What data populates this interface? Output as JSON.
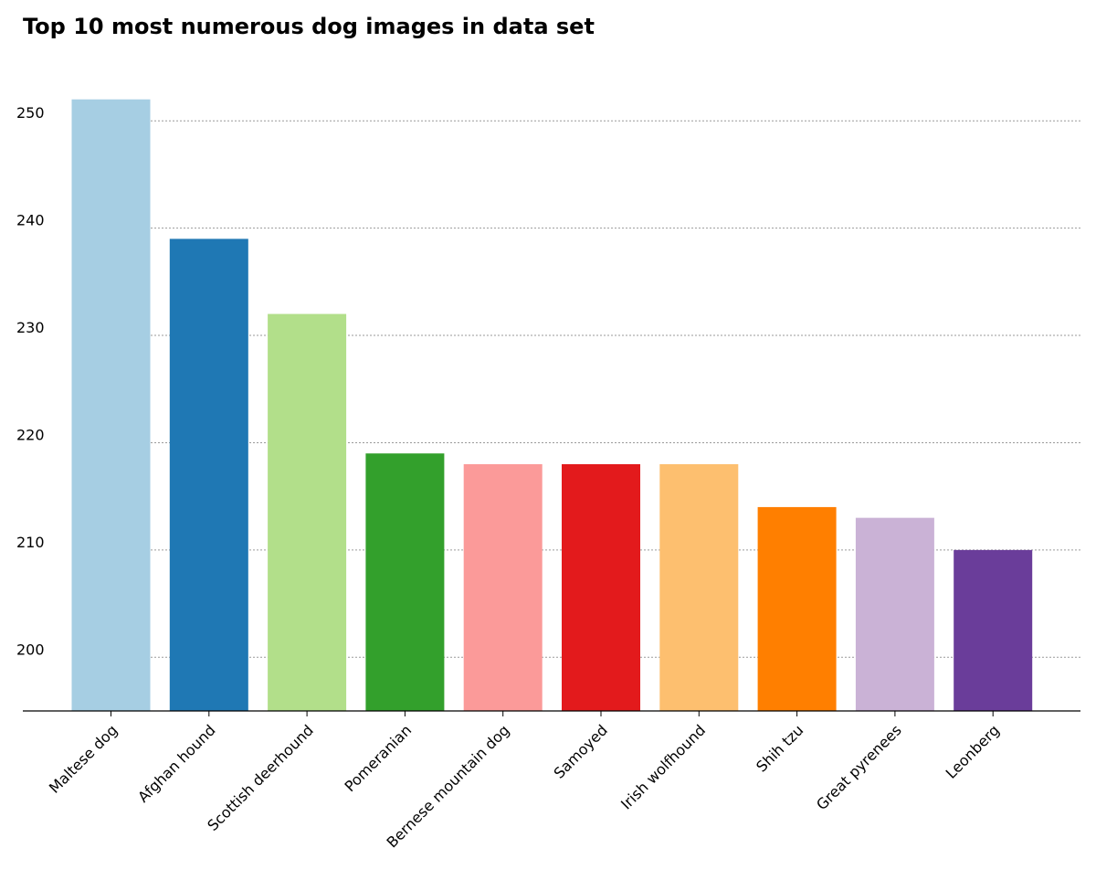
{
  "chart_data": {
    "type": "bar",
    "title": "Top 10 most numerous dog images in data set",
    "xlabel": "",
    "ylabel": "",
    "categories": [
      "Maltese dog",
      "Afghan hound",
      "Scottish deerhound",
      "Pomeranian",
      "Bernese mountain dog",
      "Samoyed",
      "Irish wolfhound",
      "Shih tzu",
      "Great pyrenees",
      "Leonberg"
    ],
    "values": [
      252,
      239,
      232,
      219,
      218,
      218,
      218,
      214,
      213,
      210
    ],
    "colors": [
      "#a6cee3",
      "#1f78b4",
      "#b2df8a",
      "#33a02c",
      "#fb9a99",
      "#e31a1c",
      "#fdbf6f",
      "#ff7f00",
      "#cab2d6",
      "#6a3d9a"
    ],
    "ylim": [
      195,
      253
    ],
    "yticks": [
      200,
      210,
      220,
      230,
      240,
      250
    ],
    "grid": true,
    "legend": "none"
  }
}
